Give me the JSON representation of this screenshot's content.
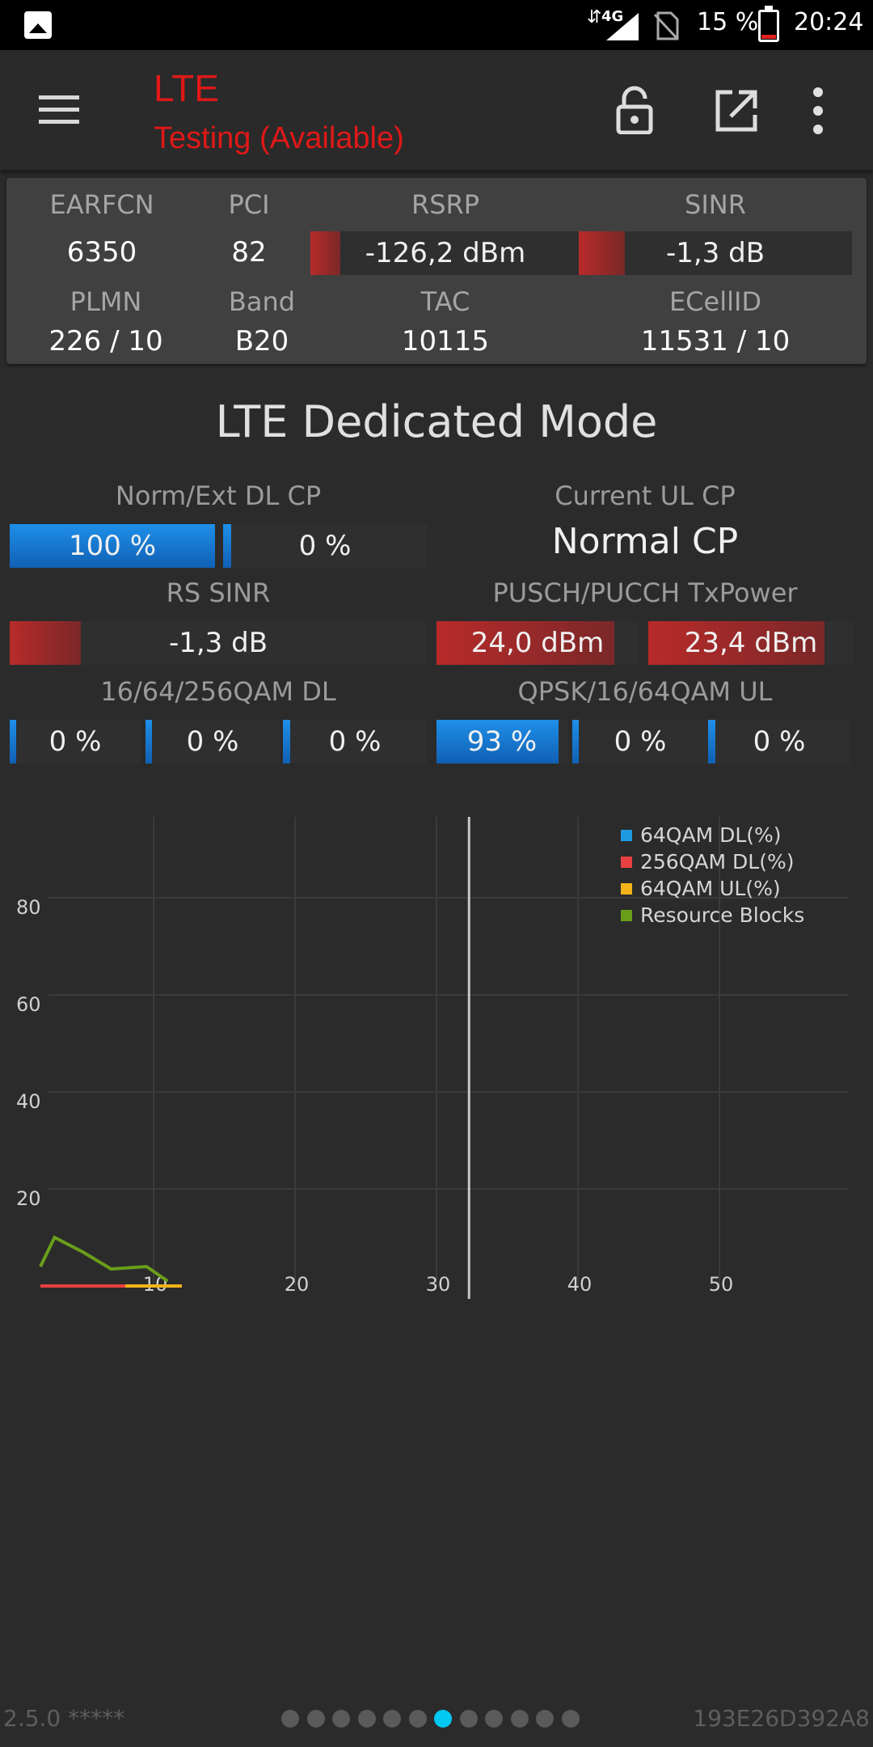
{
  "status_bar": {
    "network_type": "4G",
    "battery_percent": "15 %",
    "battery_level": 0.15,
    "time": "20:24",
    "icons": [
      "gallery-icon",
      "data-arrows-icon",
      "signal-icon",
      "no-sim-icon",
      "battery-icon"
    ]
  },
  "app_bar": {
    "technology": "LTE",
    "status": "Testing (Available)",
    "accent_color": "#e01818",
    "icons": [
      "menu-icon",
      "lock-open-icon",
      "open-external-icon",
      "more-vert-icon"
    ]
  },
  "cell_info": {
    "earfcn": {
      "label": "EARFCN",
      "value": "6350"
    },
    "pci": {
      "label": "PCI",
      "value": "82"
    },
    "rsrp": {
      "label": "RSRP",
      "value": "-126,2 dBm",
      "level": 0.11
    },
    "sinr": {
      "label": "SINR",
      "value": "-1,3 dB",
      "level": 0.17
    },
    "plmn": {
      "label": "PLMN",
      "value": "226 / 10"
    },
    "band": {
      "label": "Band",
      "value": "B20"
    },
    "tac": {
      "label": "TAC",
      "value": "10115"
    },
    "ecellid": {
      "label": "ECellID",
      "value": "11531 / 10"
    }
  },
  "dedicated": {
    "title": "LTE Dedicated Mode",
    "dl_cp": {
      "label": "Norm/Ext DL CP",
      "normal": "100 %",
      "normal_level": 1.0,
      "extended": "0 %",
      "extended_level": 0.0
    },
    "ul_cp": {
      "label": "Current UL CP",
      "value": "Normal CP"
    },
    "rs_sinr": {
      "label": "RS SINR",
      "value": "-1,3 dB",
      "level": 0.17
    },
    "txpower": {
      "label": "PUSCH/PUCCH TxPower",
      "pusch": "24,0 dBm",
      "pusch_level": 0.88,
      "pucch": "23,4 dBm",
      "pucch_level": 0.86
    },
    "qam_dl": {
      "label": "16/64/256QAM DL",
      "values": [
        "0 %",
        "0 %",
        "0 %"
      ],
      "levels": [
        0,
        0,
        0
      ]
    },
    "qam_ul": {
      "label": "QPSK/16/64QAM UL",
      "values": [
        "93 %",
        "0 %",
        "0 %"
      ],
      "levels": [
        0.93,
        0,
        0
      ]
    }
  },
  "chart_data": {
    "type": "line",
    "x_ticks": [
      "10",
      "20",
      "30",
      "40",
      "50"
    ],
    "y_ticks": [
      "20",
      "40",
      "60",
      "80"
    ],
    "xlim": [
      0,
      60
    ],
    "ylim": [
      0,
      100
    ],
    "grid": true,
    "legend_position": "top-right",
    "cursor_x": 32.3,
    "series": [
      {
        "name": "64QAM DL(%)",
        "color": "#1e9be0",
        "x": [],
        "y": []
      },
      {
        "name": "256QAM DL(%)",
        "color": "#e84040",
        "x": [
          2,
          3,
          4,
          5,
          6,
          7,
          8,
          9,
          10,
          11
        ],
        "y": [
          0,
          0,
          0,
          0,
          0,
          0,
          0,
          0,
          0,
          0
        ]
      },
      {
        "name": "64QAM UL(%)",
        "color": "#f2b418",
        "x": [
          8,
          9,
          10,
          11,
          12
        ],
        "y": [
          0,
          0,
          0,
          0,
          0
        ]
      },
      {
        "name": "Resource Blocks",
        "color": "#6a9e1a",
        "x": [
          2,
          3,
          5,
          7,
          9.5,
          11
        ],
        "y": [
          4,
          10,
          7,
          3.5,
          4,
          1
        ]
      }
    ]
  },
  "footer": {
    "version": "2.5.0 *****",
    "device_id": "193E26D392A8",
    "page_count": 12,
    "active_page": 7
  }
}
